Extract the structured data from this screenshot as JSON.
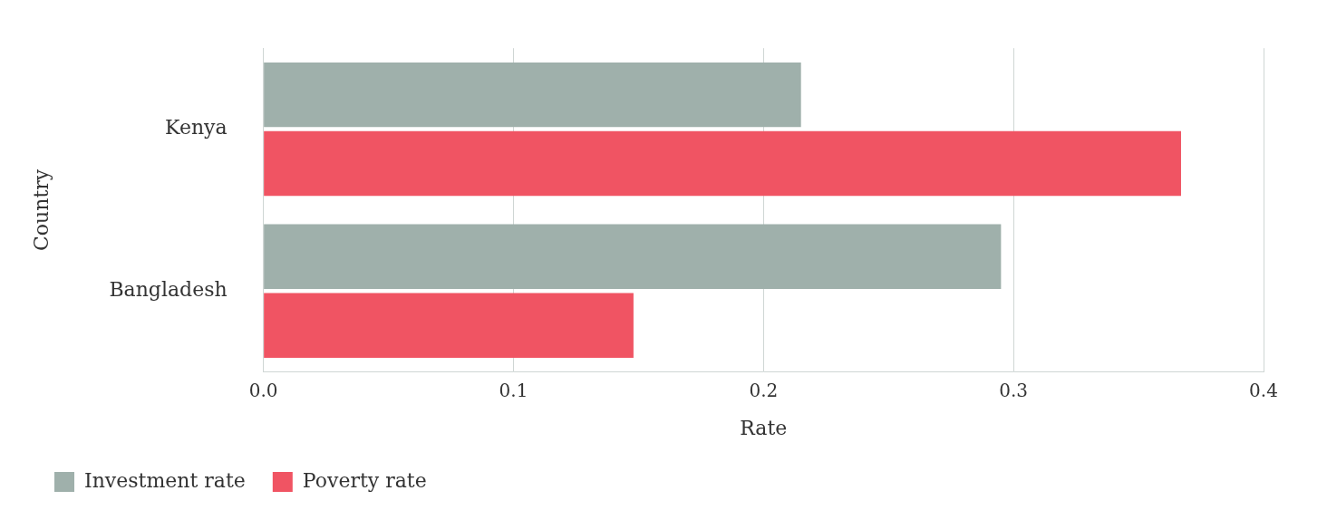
{
  "chart_data": {
    "type": "bar",
    "orientation": "horizontal",
    "x_label": "Rate",
    "y_label": "Country",
    "categories": [
      "Kenya",
      "Bangladesh"
    ],
    "series": [
      {
        "name": "Investment rate",
        "color": "#9fb0ab",
        "values": [
          0.215,
          0.295
        ]
      },
      {
        "name": "Poverty rate",
        "color": "#f05463",
        "values": [
          0.367,
          0.148
        ]
      }
    ],
    "xlim": [
      0,
      0.4
    ],
    "xticks": [
      {
        "value": 0,
        "label": "0.0"
      },
      0.1,
      0.2,
      0.3,
      0.4
    ],
    "grid": true,
    "legend": "bottom-left"
  }
}
